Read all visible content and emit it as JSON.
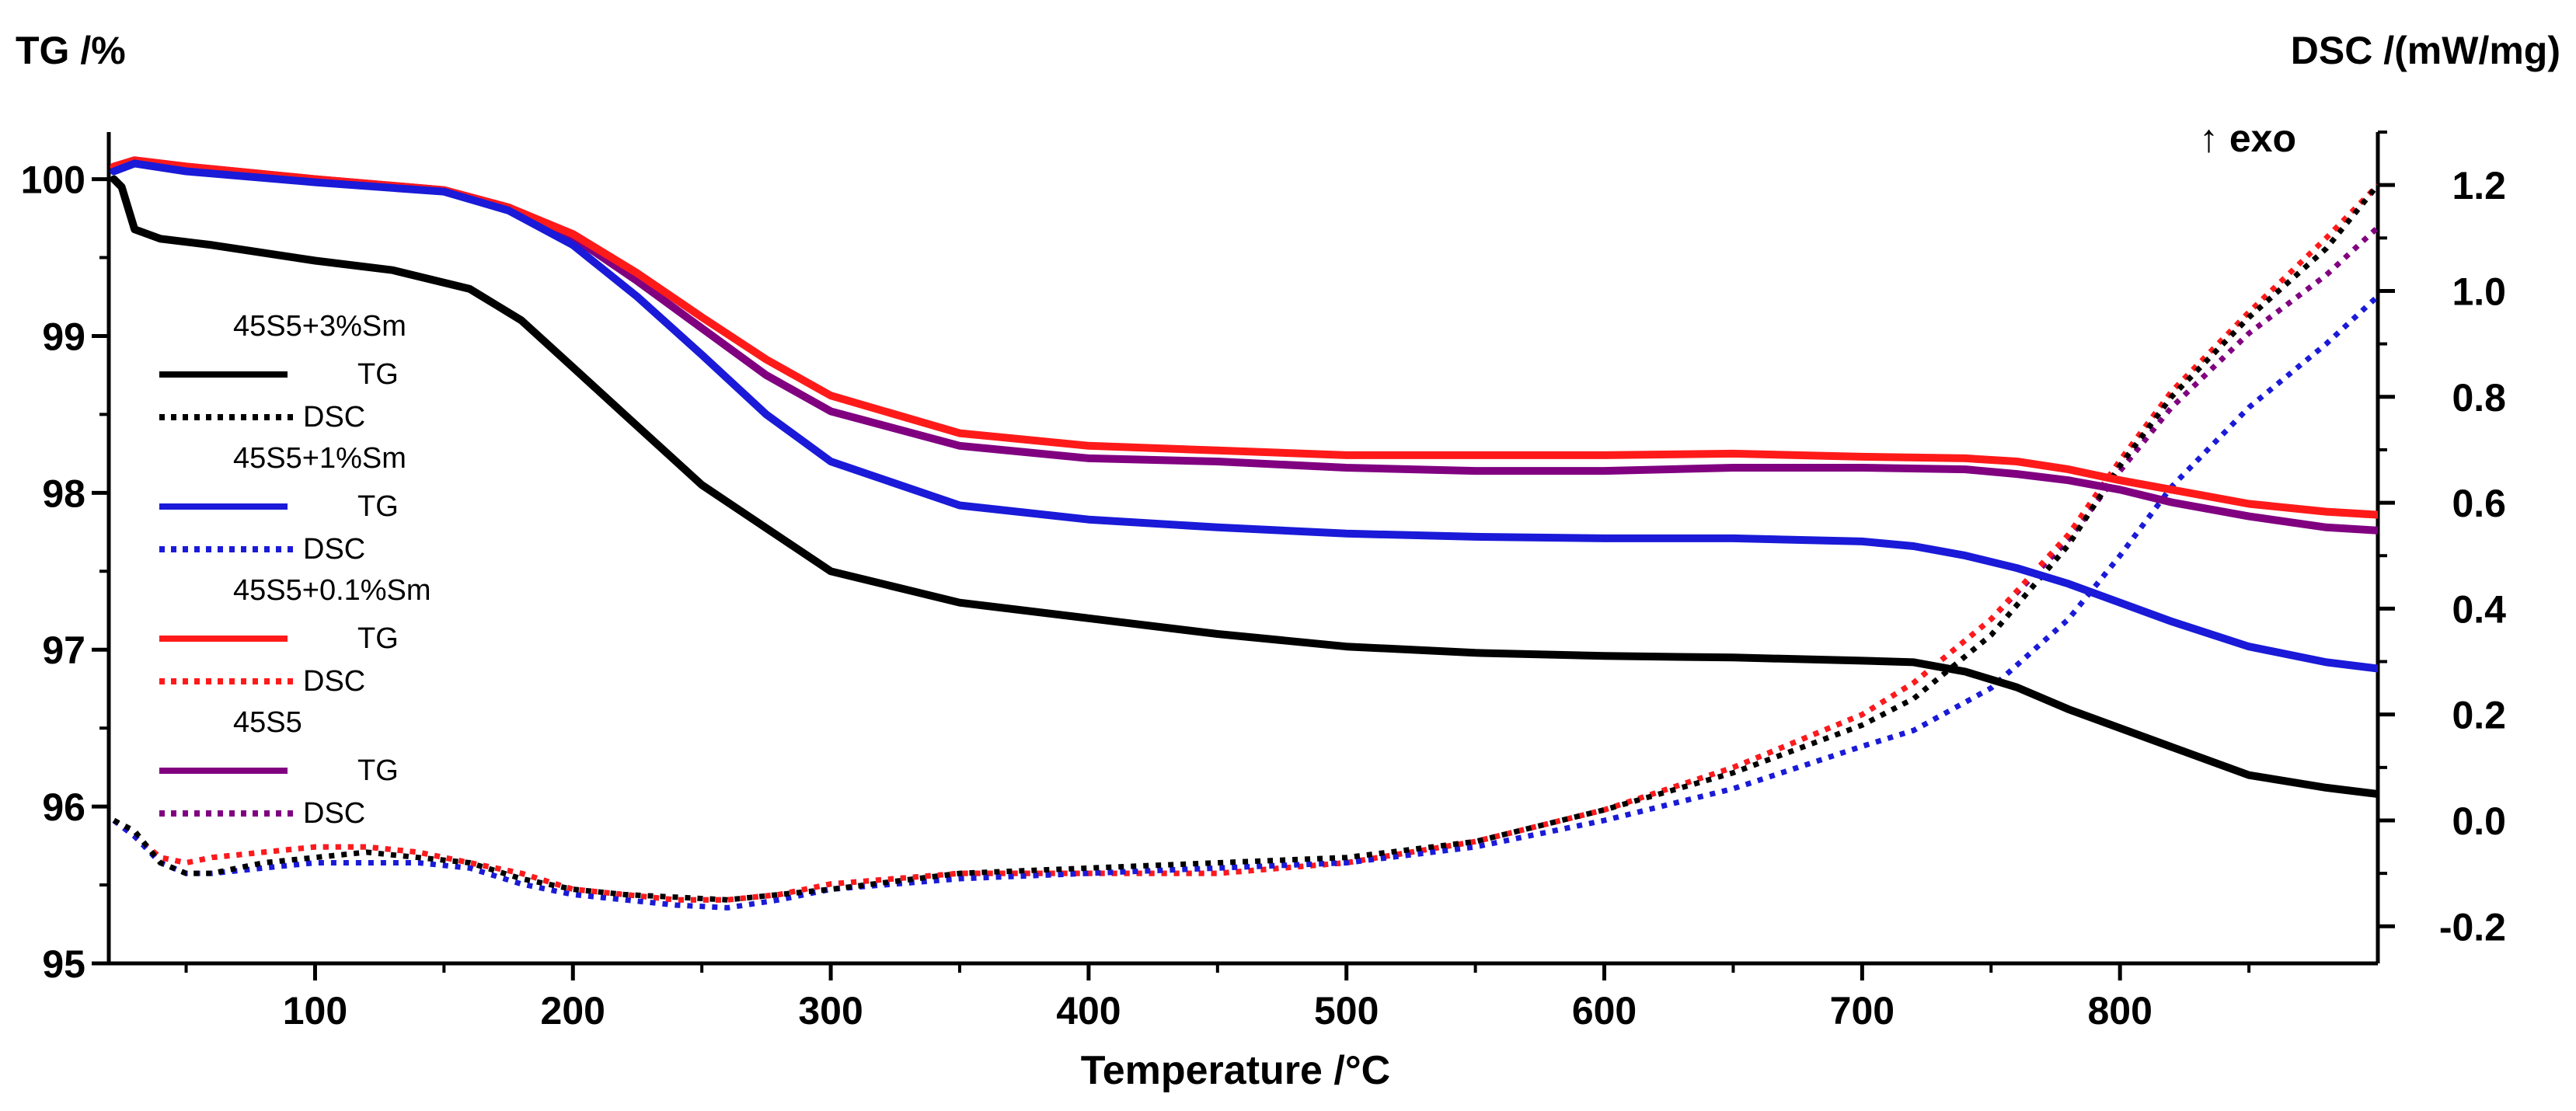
{
  "chart_data": {
    "type": "line",
    "title": "",
    "xlabel": "Temperature /°C",
    "ylabel_left": "TG /%",
    "ylabel_right": "DSC /(mW/mg)",
    "exo_label": "↑ exo",
    "xlim": [
      20,
      900
    ],
    "ylim_left": [
      95,
      100.3
    ],
    "ylim_right": [
      -0.27,
      1.3
    ],
    "xticks": [
      "100",
      "200",
      "300",
      "400",
      "500",
      "600",
      "700",
      "800"
    ],
    "yticks_left": [
      "95",
      "96",
      "97",
      "98",
      "99",
      "100"
    ],
    "yticks_right": [
      "-0.2",
      "0.0",
      "0.2",
      "0.4",
      "0.6",
      "0.8",
      "1.0",
      "1.2"
    ],
    "grid": false,
    "legend_position": "left",
    "colors": {
      "45S5+3%Sm": "#000000",
      "45S5+1%Sm": "#1a1ad8",
      "45S5+0.1%Sm": "#ff1a1a",
      "45S5": "#800080"
    },
    "legend": [
      {
        "sample": "45S5+3%Sm",
        "tg_label": "TG",
        "dsc_label": "DSC"
      },
      {
        "sample": "45S5+1%Sm",
        "tg_label": "TG",
        "dsc_label": "DSC"
      },
      {
        "sample": "45S5+0.1%Sm",
        "tg_label": "TG",
        "dsc_label": "DSC"
      },
      {
        "sample": "45S5",
        "tg_label": "TG",
        "dsc_label": "DSC"
      }
    ],
    "series": [
      {
        "name": "45S5+3%Sm TG",
        "sample": "45S5+3%Sm",
        "kind": "TG",
        "axis": "left",
        "x": [
          22,
          25,
          30,
          40,
          60,
          100,
          130,
          160,
          180,
          200,
          220,
          250,
          280,
          300,
          350,
          400,
          450,
          500,
          550,
          600,
          650,
          700,
          720,
          740,
          760,
          780,
          800,
          820,
          850,
          880,
          900
        ],
        "values": [
          100.0,
          99.95,
          99.68,
          99.62,
          99.58,
          99.48,
          99.42,
          99.3,
          99.1,
          98.8,
          98.5,
          98.05,
          97.72,
          97.5,
          97.3,
          97.2,
          97.1,
          97.02,
          96.98,
          96.96,
          96.95,
          96.93,
          96.92,
          96.86,
          96.76,
          96.62,
          96.5,
          96.38,
          96.2,
          96.12,
          96.08
        ]
      },
      {
        "name": "45S5+1%Sm TG",
        "sample": "45S5+1%Sm",
        "kind": "TG",
        "axis": "left",
        "x": [
          22,
          30,
          50,
          100,
          150,
          175,
          200,
          225,
          250,
          275,
          300,
          350,
          400,
          450,
          500,
          550,
          600,
          650,
          700,
          720,
          740,
          760,
          780,
          800,
          820,
          850,
          880,
          900
        ],
        "values": [
          100.05,
          100.1,
          100.05,
          99.98,
          99.92,
          99.8,
          99.58,
          99.25,
          98.88,
          98.5,
          98.2,
          97.92,
          97.83,
          97.78,
          97.74,
          97.72,
          97.71,
          97.71,
          97.69,
          97.66,
          97.6,
          97.52,
          97.42,
          97.3,
          97.18,
          97.02,
          96.92,
          96.88
        ]
      },
      {
        "name": "45S5+0.1%Sm TG",
        "sample": "45S5+0.1%Sm",
        "kind": "TG",
        "axis": "left",
        "x": [
          22,
          30,
          50,
          100,
          150,
          175,
          200,
          225,
          250,
          275,
          300,
          350,
          400,
          450,
          500,
          550,
          600,
          650,
          700,
          740,
          760,
          780,
          800,
          820,
          850,
          880,
          900
        ],
        "values": [
          100.08,
          100.12,
          100.08,
          100.0,
          99.93,
          99.82,
          99.65,
          99.4,
          99.12,
          98.85,
          98.62,
          98.38,
          98.3,
          98.27,
          98.24,
          98.24,
          98.24,
          98.25,
          98.23,
          98.22,
          98.2,
          98.15,
          98.08,
          98.02,
          97.93,
          97.88,
          97.86
        ]
      },
      {
        "name": "45S5 TG",
        "sample": "45S5",
        "kind": "TG",
        "axis": "left",
        "x": [
          22,
          30,
          50,
          100,
          150,
          175,
          200,
          225,
          250,
          275,
          300,
          350,
          400,
          450,
          500,
          550,
          600,
          650,
          700,
          740,
          760,
          780,
          800,
          820,
          850,
          880,
          900
        ],
        "values": [
          100.08,
          100.12,
          100.08,
          100.0,
          99.93,
          99.82,
          99.63,
          99.35,
          99.05,
          98.75,
          98.52,
          98.3,
          98.22,
          98.2,
          98.16,
          98.14,
          98.14,
          98.16,
          98.16,
          98.15,
          98.12,
          98.08,
          98.02,
          97.94,
          97.85,
          97.78,
          97.76
        ]
      },
      {
        "name": "45S5+3%Sm DSC",
        "sample": "45S5+3%Sm",
        "kind": "DSC",
        "axis": "right",
        "x": [
          22,
          30,
          40,
          50,
          60,
          80,
          100,
          120,
          140,
          160,
          180,
          200,
          220,
          240,
          260,
          280,
          300,
          350,
          400,
          450,
          500,
          550,
          600,
          650,
          700,
          720,
          750,
          780,
          800,
          820,
          850,
          880,
          900
        ],
        "values": [
          0.0,
          -0.02,
          -0.08,
          -0.1,
          -0.1,
          -0.08,
          -0.07,
          -0.06,
          -0.07,
          -0.08,
          -0.11,
          -0.13,
          -0.14,
          -0.145,
          -0.15,
          -0.14,
          -0.13,
          -0.1,
          -0.09,
          -0.08,
          -0.07,
          -0.04,
          0.02,
          0.09,
          0.18,
          0.23,
          0.35,
          0.52,
          0.67,
          0.8,
          0.95,
          1.08,
          1.2
        ]
      },
      {
        "name": "45S5+1%Sm DSC",
        "sample": "45S5+1%Sm",
        "kind": "DSC",
        "axis": "right",
        "x": [
          22,
          30,
          40,
          50,
          60,
          80,
          100,
          120,
          140,
          160,
          180,
          200,
          220,
          240,
          260,
          280,
          300,
          350,
          400,
          450,
          500,
          550,
          600,
          650,
          700,
          720,
          750,
          780,
          800,
          820,
          850,
          880,
          900
        ],
        "values": [
          0.0,
          -0.03,
          -0.08,
          -0.1,
          -0.1,
          -0.09,
          -0.08,
          -0.08,
          -0.08,
          -0.09,
          -0.12,
          -0.14,
          -0.15,
          -0.16,
          -0.165,
          -0.15,
          -0.13,
          -0.11,
          -0.1,
          -0.09,
          -0.08,
          -0.05,
          0.0,
          0.06,
          0.14,
          0.17,
          0.25,
          0.38,
          0.5,
          0.63,
          0.78,
          0.9,
          0.99
        ]
      },
      {
        "name": "45S5+0.1%Sm DSC",
        "sample": "45S5+0.1%Sm",
        "kind": "DSC",
        "axis": "right",
        "x": [
          22,
          30,
          40,
          50,
          60,
          80,
          100,
          120,
          140,
          160,
          180,
          200,
          220,
          240,
          260,
          280,
          300,
          350,
          400,
          450,
          500,
          550,
          600,
          650,
          700,
          720,
          750,
          780,
          800,
          820,
          850,
          880,
          900
        ],
        "values": [
          0.0,
          -0.03,
          -0.07,
          -0.08,
          -0.07,
          -0.06,
          -0.05,
          -0.05,
          -0.06,
          -0.08,
          -0.1,
          -0.13,
          -0.14,
          -0.15,
          -0.15,
          -0.14,
          -0.12,
          -0.1,
          -0.1,
          -0.1,
          -0.08,
          -0.04,
          0.02,
          0.1,
          0.2,
          0.26,
          0.38,
          0.54,
          0.68,
          0.81,
          0.96,
          1.1,
          1.2
        ]
      },
      {
        "name": "45S5 DSC",
        "sample": "45S5",
        "kind": "DSC",
        "axis": "right",
        "x": [
          22,
          30,
          40,
          50,
          60,
          80,
          100,
          120,
          140,
          160,
          180,
          200,
          220,
          240,
          260,
          280,
          300,
          350,
          400,
          450,
          500,
          550,
          600,
          650,
          700,
          720,
          750,
          780,
          800,
          820,
          850,
          880,
          900
        ],
        "values": [
          0.0,
          -0.03,
          -0.07,
          -0.08,
          -0.07,
          -0.06,
          -0.05,
          -0.05,
          -0.06,
          -0.08,
          -0.1,
          -0.13,
          -0.14,
          -0.15,
          -0.15,
          -0.14,
          -0.12,
          -0.1,
          -0.1,
          -0.1,
          -0.08,
          -0.04,
          0.02,
          0.1,
          0.2,
          0.26,
          0.38,
          0.53,
          0.66,
          0.78,
          0.92,
          1.03,
          1.12
        ]
      }
    ]
  }
}
